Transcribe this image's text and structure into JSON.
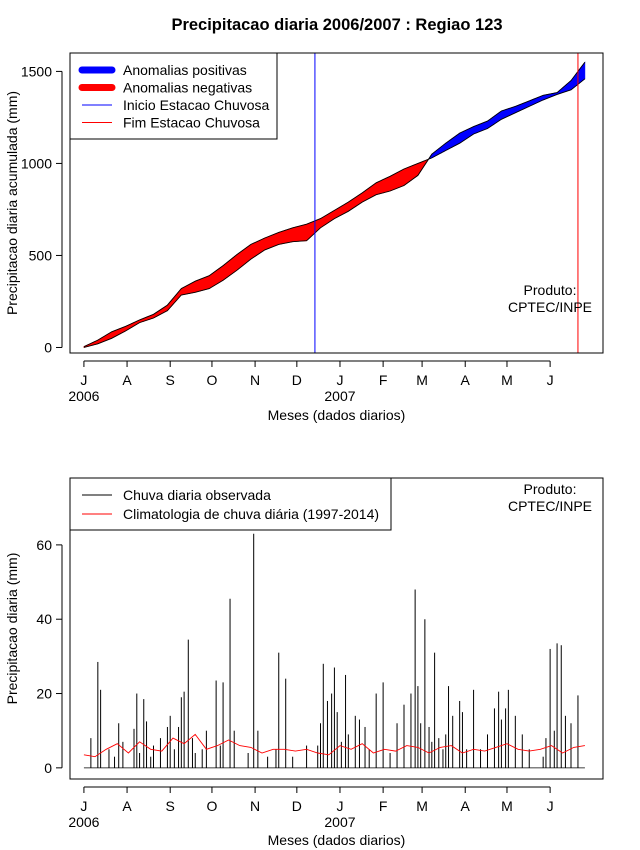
{
  "title": "Precipitacao diaria 2006/2007 : Regiao 123",
  "colors": {
    "positive": "#0000ff",
    "negative": "#ff0000",
    "season_start": "#0000ff",
    "season_end": "#ff0000",
    "observed": "#000000",
    "climatology": "#ff0000"
  },
  "chart_data": [
    {
      "type": "area",
      "name": "accumulated",
      "ylabel": "Precipitacao diaria acumulada (mm)",
      "xlabel": "Meses (dados diarios)",
      "ylim": [
        -30,
        1600
      ],
      "xlim": [
        -10,
        373
      ],
      "yticks": [
        0,
        500,
        1000,
        1500
      ],
      "month_ticks": [
        {
          "day": 0,
          "label": "J"
        },
        {
          "day": 31,
          "label": "A"
        },
        {
          "day": 62,
          "label": "S"
        },
        {
          "day": 92,
          "label": "O"
        },
        {
          "day": 123,
          "label": "N"
        },
        {
          "day": 153,
          "label": "D"
        },
        {
          "day": 184,
          "label": "J"
        },
        {
          "day": 215,
          "label": "F"
        },
        {
          "day": 243,
          "label": "M"
        },
        {
          "day": 274,
          "label": "A"
        },
        {
          "day": 304,
          "label": "M"
        },
        {
          "day": 335,
          "label": "J"
        }
      ],
      "year_labels": [
        {
          "day": 0,
          "label": "2006"
        },
        {
          "day": 184,
          "label": "2007"
        }
      ],
      "season_start_day": 166,
      "season_end_day": 355,
      "legend": [
        {
          "label": "Anomalias positivas",
          "kind": "thick",
          "color_key": "positive"
        },
        {
          "label": "Anomalias negativas",
          "kind": "thick",
          "color_key": "negative"
        },
        {
          "label": "Inicio Estacao Chuvosa",
          "kind": "thin",
          "color_key": "season_start"
        },
        {
          "label": "Fim Estacao Chuvosa",
          "kind": "thin",
          "color_key": "season_end"
        }
      ],
      "product_note": [
        "Produto:",
        "CPTEC/INPE"
      ],
      "observed_accumulated": {
        "days": [
          0,
          10,
          20,
          30,
          40,
          50,
          60,
          70,
          80,
          90,
          100,
          110,
          120,
          130,
          140,
          150,
          160,
          170,
          180,
          190,
          200,
          210,
          220,
          230,
          240,
          250,
          260,
          270,
          280,
          290,
          300,
          310,
          320,
          330,
          340,
          350,
          360
        ],
        "values": [
          0,
          20,
          50,
          90,
          135,
          160,
          200,
          285,
          300,
          320,
          365,
          420,
          480,
          530,
          560,
          575,
          580,
          650,
          700,
          740,
          790,
          830,
          850,
          880,
          935,
          1050,
          1110,
          1165,
          1200,
          1230,
          1285,
          1310,
          1340,
          1370,
          1385,
          1450,
          1550
        ]
      },
      "climatology_accumulated": {
        "days": [
          0,
          10,
          20,
          30,
          40,
          50,
          60,
          70,
          80,
          90,
          100,
          110,
          120,
          130,
          140,
          150,
          160,
          170,
          180,
          190,
          200,
          210,
          220,
          230,
          240,
          250,
          260,
          270,
          280,
          290,
          300,
          310,
          320,
          330,
          340,
          350,
          360
        ],
        "values": [
          5,
          40,
          85,
          115,
          150,
          180,
          230,
          320,
          360,
          390,
          445,
          505,
          560,
          595,
          625,
          650,
          670,
          700,
          745,
          790,
          840,
          895,
          930,
          970,
          1000,
          1030,
          1070,
          1110,
          1160,
          1190,
          1240,
          1275,
          1310,
          1345,
          1375,
          1400,
          1460
        ]
      }
    },
    {
      "type": "line",
      "name": "daily",
      "ylabel": "Precipitacao diaria (mm)",
      "xlabel": "Meses (dados diarios)",
      "ylim": [
        -3,
        78
      ],
      "xlim": [
        -10,
        373
      ],
      "yticks": [
        0,
        20,
        40,
        60
      ],
      "month_ticks": [
        {
          "day": 0,
          "label": "J"
        },
        {
          "day": 31,
          "label": "A"
        },
        {
          "day": 62,
          "label": "S"
        },
        {
          "day": 92,
          "label": "O"
        },
        {
          "day": 123,
          "label": "N"
        },
        {
          "day": 153,
          "label": "D"
        },
        {
          "day": 184,
          "label": "J"
        },
        {
          "day": 215,
          "label": "F"
        },
        {
          "day": 243,
          "label": "M"
        },
        {
          "day": 274,
          "label": "A"
        },
        {
          "day": 304,
          "label": "M"
        },
        {
          "day": 335,
          "label": "J"
        }
      ],
      "year_labels": [
        {
          "day": 0,
          "label": "2006"
        },
        {
          "day": 184,
          "label": "2007"
        }
      ],
      "legend": [
        {
          "label": "Chuva diaria observada",
          "color_key": "observed"
        },
        {
          "label": "Climatologia de chuva diária (1997-2014)",
          "color_key": "climatology"
        }
      ],
      "product_note": [
        "Produto:",
        "CPTEC/INPE"
      ],
      "observed_days": [
        5,
        10,
        12,
        18,
        22,
        25,
        28,
        36,
        38,
        40,
        43,
        45,
        48,
        50,
        55,
        60,
        62,
        65,
        68,
        70,
        72,
        75,
        78,
        80,
        85,
        88,
        95,
        98,
        100,
        105,
        108,
        118,
        122,
        125,
        132,
        138,
        140,
        145,
        150,
        160,
        168,
        170,
        172,
        175,
        178,
        180,
        182,
        185,
        188,
        190,
        195,
        198,
        202,
        205,
        210,
        215,
        220,
        225,
        230,
        235,
        238,
        240,
        242,
        245,
        248,
        250,
        252,
        255,
        258,
        260,
        262,
        265,
        270,
        272,
        275,
        280,
        285,
        290,
        295,
        298,
        300,
        303,
        305,
        310,
        315,
        320,
        330,
        332,
        335,
        338,
        340,
        343,
        346,
        350,
        355
      ],
      "observed_values": [
        8,
        28.5,
        21,
        5,
        3,
        12,
        7,
        10.5,
        20,
        4,
        18.5,
        12.5,
        3,
        6,
        8,
        11,
        14,
        5,
        11,
        19,
        20.5,
        34.5,
        8,
        4,
        5,
        10,
        23.5,
        6,
        23,
        45.5,
        10,
        4,
        63,
        10,
        3,
        5,
        31,
        24,
        3,
        6,
        6,
        12,
        28,
        18,
        20,
        27,
        15,
        7,
        25,
        9,
        14,
        13,
        11,
        5,
        20,
        23,
        4,
        12,
        17,
        20,
        48,
        22,
        12,
        40,
        11,
        7,
        31,
        8,
        5,
        9,
        22,
        14,
        18,
        15,
        5,
        21,
        5,
        9,
        16,
        20.5,
        13,
        16,
        21,
        14,
        9,
        5,
        3,
        8,
        32,
        10,
        33.5,
        33,
        14,
        12,
        19.5
      ],
      "climatology_days": [
        0,
        8,
        16,
        24,
        32,
        40,
        48,
        56,
        64,
        72,
        80,
        88,
        96,
        104,
        112,
        120,
        128,
        136,
        144,
        152,
        160,
        168,
        176,
        184,
        192,
        200,
        208,
        216,
        224,
        232,
        240,
        248,
        256,
        264,
        272,
        280,
        288,
        296,
        304,
        312,
        320,
        328,
        336,
        344,
        352,
        360
      ],
      "climatology_values": [
        3.5,
        3,
        5,
        6.5,
        4,
        7,
        5,
        4.5,
        8,
        6.5,
        9,
        5,
        6,
        7.5,
        6,
        5.5,
        4,
        5,
        5,
        4.5,
        5,
        4,
        3.5,
        6,
        5,
        6.5,
        4,
        5,
        4.5,
        6,
        5.5,
        4,
        5.5,
        6,
        4,
        5,
        4.5,
        5.5,
        6.5,
        5,
        4.5,
        5,
        6,
        4,
        5.5,
        6
      ]
    }
  ]
}
